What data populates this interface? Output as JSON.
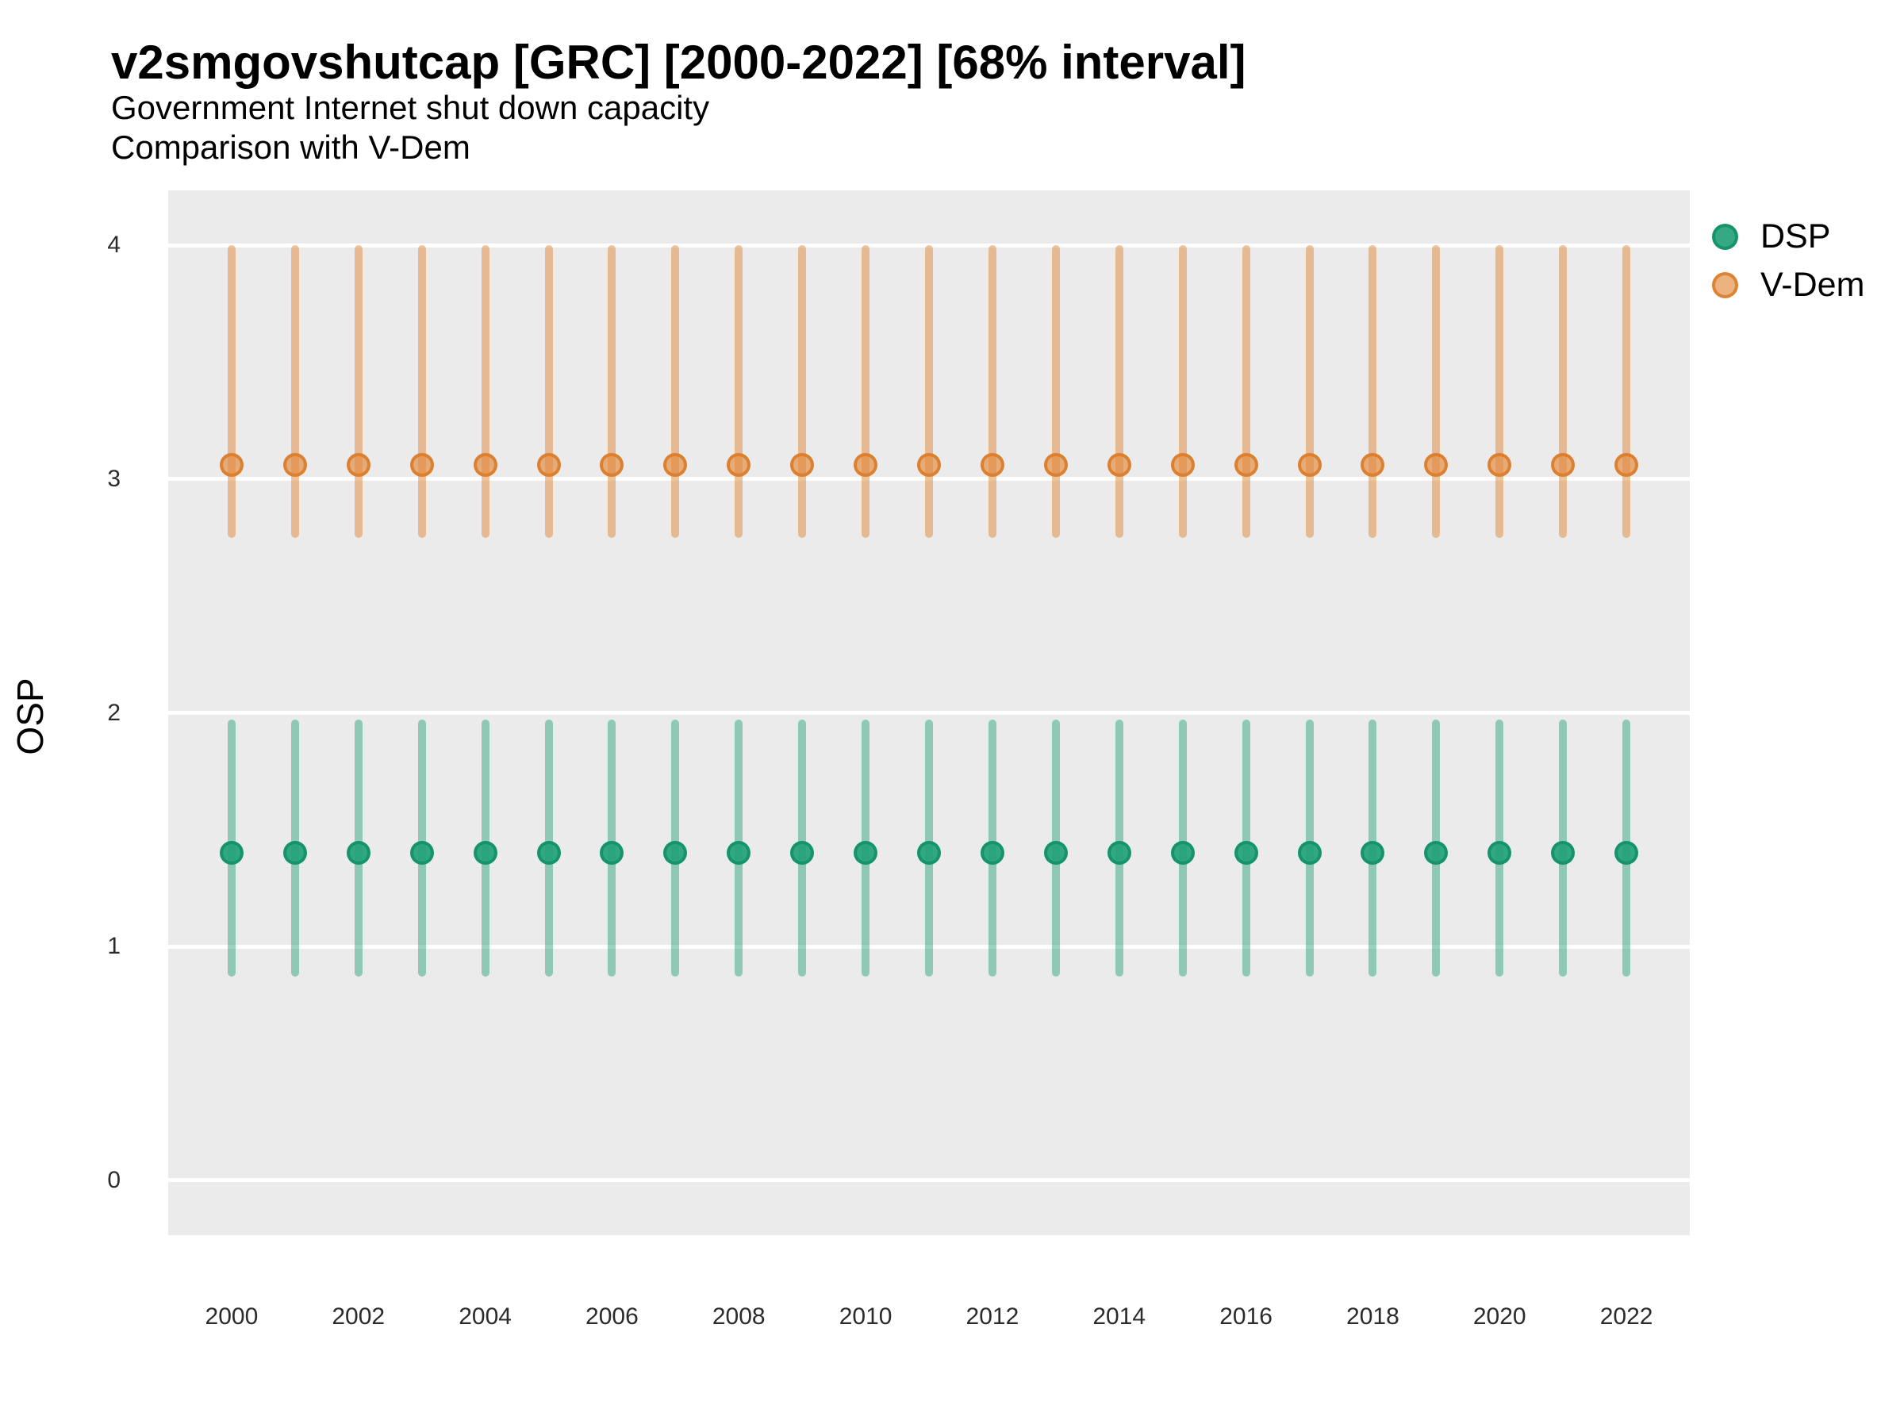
{
  "header": {
    "title": "v2smgovshutcap [GRC] [2000-2022] [68% interval]",
    "subtitle_line1": "Government Internet shut down capacity",
    "subtitle_line2": "Comparison with V-Dem"
  },
  "y_axis_title": "OSP",
  "legend": {
    "position": "right",
    "items": [
      {
        "label": "DSP",
        "fill": "rgba(30,160,118,0.9)",
        "stroke": "rgba(20,148,107,0.95)"
      },
      {
        "label": "V-Dem",
        "fill": "rgba(226,136,60,0.65)",
        "stroke": "rgba(219,126,44,0.9)"
      }
    ]
  },
  "chart_data": {
    "type": "pointrange",
    "title": "v2smgovshutcap [GRC] [2000-2022] [68% interval]",
    "subtitle": [
      "Government Internet shut down capacity",
      "Comparison with V-Dem"
    ],
    "xlabel": "",
    "ylabel": "OSP",
    "interval": "68%",
    "country": "GRC",
    "x": [
      2000,
      2001,
      2002,
      2003,
      2004,
      2005,
      2006,
      2007,
      2008,
      2009,
      2010,
      2011,
      2012,
      2013,
      2014,
      2015,
      2016,
      2017,
      2018,
      2019,
      2020,
      2021,
      2022
    ],
    "series": [
      {
        "name": "DSP",
        "color": "30,160,118",
        "stroke": "20,148,107",
        "fill_alpha": 0.9,
        "line_alpha": 0.45,
        "median": [
          1.4,
          1.4,
          1.4,
          1.4,
          1.4,
          1.4,
          1.4,
          1.4,
          1.4,
          1.4,
          1.4,
          1.4,
          1.4,
          1.4,
          1.4,
          1.4,
          1.4,
          1.4,
          1.4,
          1.4,
          1.4,
          1.4,
          1.4
        ],
        "lower": [
          0.87,
          0.87,
          0.87,
          0.87,
          0.87,
          0.87,
          0.87,
          0.87,
          0.87,
          0.87,
          0.87,
          0.87,
          0.87,
          0.87,
          0.87,
          0.87,
          0.87,
          0.87,
          0.87,
          0.87,
          0.87,
          0.87,
          0.87
        ],
        "upper": [
          1.97,
          1.97,
          1.97,
          1.97,
          1.97,
          1.97,
          1.97,
          1.97,
          1.97,
          1.97,
          1.97,
          1.97,
          1.97,
          1.97,
          1.97,
          1.97,
          1.97,
          1.97,
          1.97,
          1.97,
          1.97,
          1.97,
          1.97
        ]
      },
      {
        "name": "V-Dem",
        "color": "226,136,60",
        "stroke": "219,126,44",
        "fill_alpha": 0.65,
        "line_alpha": 0.5,
        "median": [
          3.06,
          3.06,
          3.06,
          3.06,
          3.06,
          3.06,
          3.06,
          3.06,
          3.06,
          3.06,
          3.06,
          3.06,
          3.06,
          3.06,
          3.06,
          3.06,
          3.06,
          3.06,
          3.06,
          3.06,
          3.06,
          3.06,
          3.06
        ],
        "lower": [
          2.75,
          2.75,
          2.75,
          2.75,
          2.75,
          2.75,
          2.75,
          2.75,
          2.75,
          2.75,
          2.75,
          2.75,
          2.75,
          2.75,
          2.75,
          2.75,
          2.75,
          2.75,
          2.75,
          2.75,
          2.75,
          2.75,
          2.75
        ],
        "upper": [
          4.0,
          4.0,
          4.0,
          4.0,
          4.0,
          4.0,
          4.0,
          4.0,
          4.0,
          4.0,
          4.0,
          4.0,
          4.0,
          4.0,
          4.0,
          4.0,
          4.0,
          4.0,
          4.0,
          4.0,
          4.0,
          4.0,
          4.0
        ]
      }
    ],
    "x_ticks": [
      2000,
      2002,
      2004,
      2006,
      2008,
      2010,
      2012,
      2014,
      2016,
      2018,
      2020,
      2022
    ],
    "y_ticks": [
      0,
      1,
      2,
      3,
      4
    ],
    "xlim": [
      1999,
      2023
    ],
    "ylim": [
      -0.235,
      4.235
    ],
    "grid": "major-y horizontal white lines on gray panel",
    "panel_background": "#EBEBEB",
    "gridline_color": "#FFFFFF",
    "legend_position": "right"
  }
}
